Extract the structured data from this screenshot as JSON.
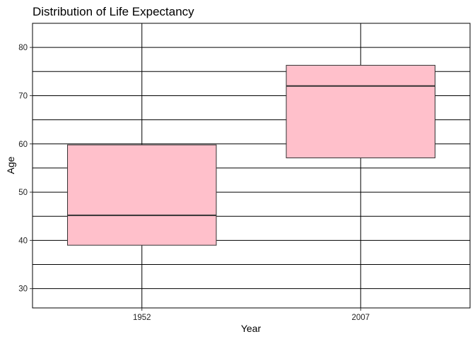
{
  "colors": {
    "box_fill": "#ffc0cb",
    "box_stroke": "#333333",
    "grid": "#000000",
    "panel_border": "#000000",
    "text": "#000000"
  },
  "chart_data": {
    "type": "boxplot",
    "title": "Distribution of Life Expectancy",
    "xlabel": "Year",
    "ylabel": "Age",
    "categories": [
      "1952",
      "2007"
    ],
    "boxes": [
      {
        "category": "1952",
        "q1": 39.0,
        "median": 45.2,
        "q3": 59.8
      },
      {
        "category": "2007",
        "q1": 57.1,
        "median": 72.0,
        "q3": 76.3
      }
    ],
    "yticks": [
      30,
      40,
      50,
      60,
      70,
      80
    ],
    "ylim": [
      26,
      85
    ],
    "grid": true,
    "legend": "none"
  }
}
